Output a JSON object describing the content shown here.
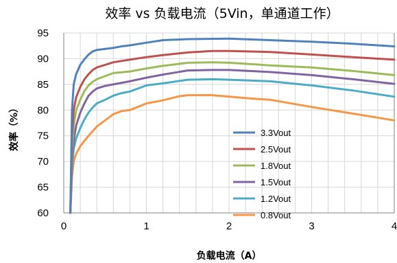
{
  "chart_data": {
    "type": "line",
    "title": "效率 vs 负载电流（5Vin，单通道工作）",
    "xlabel": "负载电流（A）",
    "ylabel": "效率（%）",
    "xlim": [
      0,
      4
    ],
    "ylim": [
      60,
      95
    ],
    "x_ticks": [
      "0",
      "1",
      "2",
      "3",
      "4"
    ],
    "y_ticks": [
      "60",
      "65",
      "70",
      "75",
      "80",
      "85",
      "90",
      "95"
    ],
    "grid": "on (vertical minor lines every 0.2 A, horizontal lines every 5 %)",
    "legend_position": "center-right",
    "series": [
      {
        "name": "3.3Vout",
        "color": "#4f81bd",
        "points": [
          [
            0.08,
            60
          ],
          [
            0.1,
            80
          ],
          [
            0.12,
            85
          ],
          [
            0.15,
            87
          ],
          [
            0.2,
            88.8
          ],
          [
            0.25,
            89.9
          ],
          [
            0.3,
            90.8
          ],
          [
            0.35,
            91.4
          ],
          [
            0.4,
            91.7
          ],
          [
            0.5,
            91.9
          ],
          [
            0.6,
            92.1
          ],
          [
            0.7,
            92.4
          ],
          [
            0.8,
            92.6
          ],
          [
            1.0,
            93.1
          ],
          [
            1.2,
            93.6
          ],
          [
            1.5,
            93.8
          ],
          [
            2.0,
            93.9
          ],
          [
            2.5,
            93.6
          ],
          [
            3.0,
            93.3
          ],
          [
            3.5,
            92.9
          ],
          [
            4.0,
            92.4
          ]
        ]
      },
      {
        "name": "2.5Vout",
        "color": "#c0504d",
        "points": [
          [
            0.08,
            60
          ],
          [
            0.1,
            75
          ],
          [
            0.12,
            80
          ],
          [
            0.15,
            82.5
          ],
          [
            0.2,
            84.5
          ],
          [
            0.25,
            86
          ],
          [
            0.3,
            87
          ],
          [
            0.35,
            87.8
          ],
          [
            0.4,
            88.3
          ],
          [
            0.5,
            88.8
          ],
          [
            0.6,
            89.3
          ],
          [
            0.8,
            89.8
          ],
          [
            1.0,
            90.3
          ],
          [
            1.2,
            90.7
          ],
          [
            1.5,
            91.2
          ],
          [
            1.8,
            91.5
          ],
          [
            2.0,
            91.5
          ],
          [
            2.5,
            91.3
          ],
          [
            3.0,
            90.8
          ],
          [
            3.5,
            90.3
          ],
          [
            4.0,
            89.8
          ]
        ]
      },
      {
        "name": "1.8Vout",
        "color": "#9bbb59",
        "points": [
          [
            0.08,
            60
          ],
          [
            0.1,
            72
          ],
          [
            0.12,
            77
          ],
          [
            0.15,
            80
          ],
          [
            0.2,
            82
          ],
          [
            0.25,
            83.7
          ],
          [
            0.3,
            84.8
          ],
          [
            0.35,
            85.5
          ],
          [
            0.4,
            86
          ],
          [
            0.5,
            86.6
          ],
          [
            0.6,
            87.2
          ],
          [
            0.8,
            87.5
          ],
          [
            1.0,
            88.1
          ],
          [
            1.2,
            88.6
          ],
          [
            1.5,
            89.2
          ],
          [
            1.8,
            89.3
          ],
          [
            2.0,
            89.2
          ],
          [
            2.5,
            88.7
          ],
          [
            3.0,
            88.3
          ],
          [
            3.5,
            87.6
          ],
          [
            4.0,
            86.8
          ]
        ]
      },
      {
        "name": "1.5Vout",
        "color": "#8064a2",
        "points": [
          [
            0.08,
            60
          ],
          [
            0.1,
            70
          ],
          [
            0.12,
            74
          ],
          [
            0.15,
            77
          ],
          [
            0.2,
            79.5
          ],
          [
            0.25,
            81.3
          ],
          [
            0.3,
            82.8
          ],
          [
            0.35,
            83.6
          ],
          [
            0.4,
            84.2
          ],
          [
            0.5,
            84.7
          ],
          [
            0.6,
            85
          ],
          [
            0.7,
            85.3
          ],
          [
            0.8,
            85.6
          ],
          [
            1.0,
            86.3
          ],
          [
            1.2,
            86.9
          ],
          [
            1.5,
            87.7
          ],
          [
            1.8,
            87.8
          ],
          [
            2.0,
            87.8
          ],
          [
            2.5,
            87.4
          ],
          [
            3.0,
            86.8
          ],
          [
            3.5,
            86
          ],
          [
            4.0,
            85.1
          ]
        ]
      },
      {
        "name": "1.2Vout",
        "color": "#4bacc6",
        "points": [
          [
            0.08,
            60
          ],
          [
            0.1,
            69
          ],
          [
            0.12,
            72.5
          ],
          [
            0.15,
            74.5
          ],
          [
            0.2,
            76.5
          ],
          [
            0.25,
            78.2
          ],
          [
            0.3,
            79.5
          ],
          [
            0.35,
            80.5
          ],
          [
            0.4,
            81.3
          ],
          [
            0.5,
            82
          ],
          [
            0.6,
            82.8
          ],
          [
            0.7,
            83.3
          ],
          [
            0.8,
            83.6
          ],
          [
            1.0,
            84.8
          ],
          [
            1.2,
            85.2
          ],
          [
            1.5,
            85.9
          ],
          [
            1.8,
            86
          ],
          [
            2.0,
            85.9
          ],
          [
            2.5,
            85.6
          ],
          [
            3.0,
            84.8
          ],
          [
            3.5,
            83.8
          ],
          [
            4.0,
            82.6
          ]
        ]
      },
      {
        "name": "0.8Vout",
        "color": "#f79646",
        "points": [
          [
            0.08,
            60
          ],
          [
            0.1,
            67
          ],
          [
            0.12,
            70
          ],
          [
            0.15,
            71.5
          ],
          [
            0.2,
            73
          ],
          [
            0.3,
            75
          ],
          [
            0.4,
            76.8
          ],
          [
            0.5,
            78
          ],
          [
            0.6,
            79.2
          ],
          [
            0.7,
            79.8
          ],
          [
            0.8,
            80
          ],
          [
            1.0,
            81.3
          ],
          [
            1.2,
            81.9
          ],
          [
            1.4,
            82.7
          ],
          [
            1.5,
            82.9
          ],
          [
            1.8,
            82.9
          ],
          [
            2.0,
            82.6
          ],
          [
            2.3,
            82.2
          ],
          [
            2.5,
            82
          ],
          [
            3.0,
            80.6
          ],
          [
            3.5,
            79.3
          ],
          [
            4.0,
            78
          ]
        ]
      }
    ]
  }
}
